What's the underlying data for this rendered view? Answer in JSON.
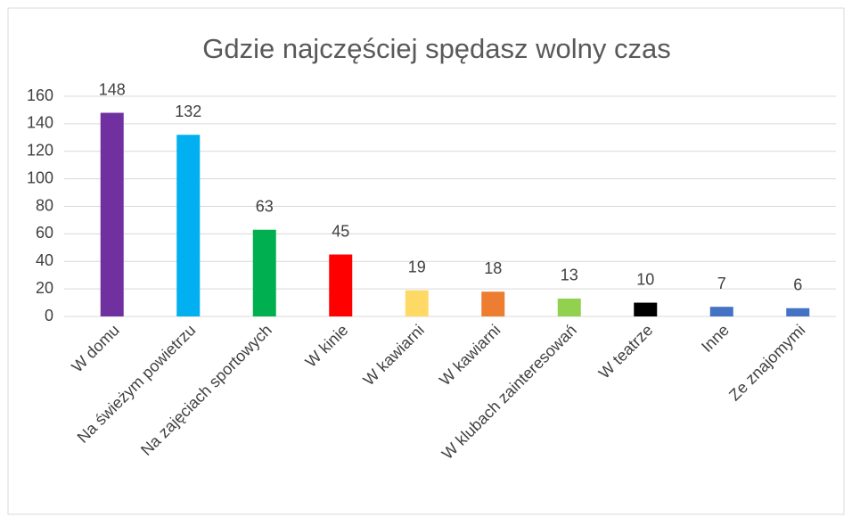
{
  "chart_data": {
    "type": "bar",
    "title": "Gdzie najczęściej spędasz wolny czas",
    "categories": [
      "W domu",
      "Na świeżym powietrzu",
      "Na zajęciach sportowych",
      "W kinie",
      "W kawiarni",
      "W kawiarni",
      "W klubach zainteresowań",
      "W teatrze",
      "Inne",
      "Ze znajomymi"
    ],
    "values": [
      148,
      132,
      63,
      45,
      19,
      18,
      13,
      10,
      7,
      6
    ],
    "colors": [
      "#7030a0",
      "#00b0f0",
      "#00b050",
      "#ff0000",
      "#ffd966",
      "#ed7d31",
      "#92d050",
      "#000000",
      "#4472c4",
      "#4472c4"
    ],
    "ylim": [
      0,
      160
    ],
    "yticks": [
      0,
      20,
      40,
      60,
      80,
      100,
      120,
      140,
      160
    ],
    "grid": true
  }
}
